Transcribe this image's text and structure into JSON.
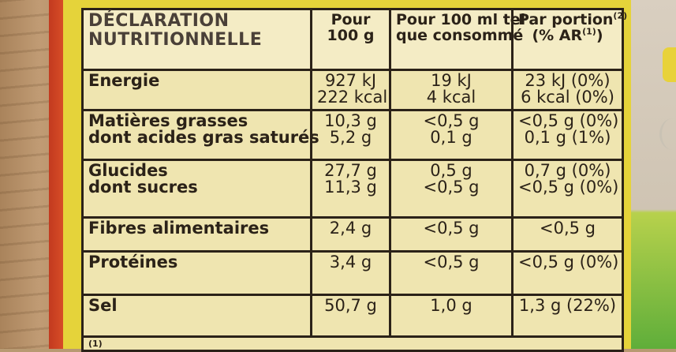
{
  "table": {
    "headers": {
      "nutrient": [
        "DÉCLARATION",
        "NUTRITIONNELLE"
      ],
      "per100g": [
        "Pour",
        "100 g"
      ],
      "per100ml": [
        "Pour 100 ml tel",
        "que consommé"
      ],
      "perPortion": [
        "Par portion",
        "(% AR",
        ")"
      ],
      "perPortion_sup1": "(2)",
      "perPortion_sup2": "(1)"
    },
    "rows": [
      {
        "labels": [
          "Energie"
        ],
        "per100g": [
          "927 kJ",
          "222 kcal"
        ],
        "per100ml": [
          "19 kJ",
          "4 kcal"
        ],
        "perPortion": [
          "23 kJ (0%)",
          "6 kcal (0%)"
        ]
      },
      {
        "labels": [
          "Matières grasses",
          "dont acides gras saturés"
        ],
        "per100g": [
          "10,3 g",
          "5,2 g"
        ],
        "per100ml": [
          "<0,5 g",
          "0,1 g"
        ],
        "perPortion": [
          "<0,5 g (0%)",
          "0,1 g (1%)"
        ]
      },
      {
        "labels": [
          "Glucides",
          "dont sucres"
        ],
        "per100g": [
          "27,7 g",
          "11,3 g"
        ],
        "per100ml": [
          "0,5 g",
          "<0,5 g"
        ],
        "perPortion": [
          "0,7 g (0%)",
          "<0,5 g (0%)"
        ]
      },
      {
        "labels": [
          "Fibres alimentaires"
        ],
        "per100g": [
          "2,4 g"
        ],
        "per100ml": [
          "<0,5 g"
        ],
        "perPortion": [
          "<0,5 g"
        ]
      },
      {
        "labels": [
          "Protéines"
        ],
        "per100g": [
          "3,4 g"
        ],
        "per100ml": [
          "<0,5 g"
        ],
        "perPortion": [
          "<0,5 g (0%)"
        ]
      },
      {
        "labels": [
          "Sel"
        ],
        "per100g": [
          "50,7 g"
        ],
        "per100ml": [
          "1,0 g"
        ],
        "perPortion": [
          "1,3 g (22%)"
        ]
      }
    ],
    "footnote": "(1)"
  },
  "colors": {
    "table_bg": "#efe5b0",
    "ink": "#2b2218",
    "package_yellow": "#e5d33a"
  }
}
